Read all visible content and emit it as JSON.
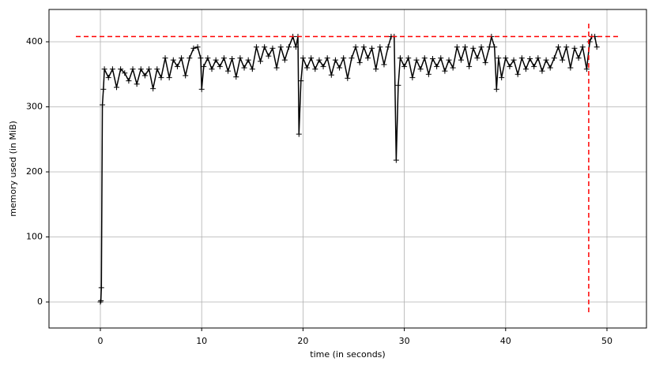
{
  "chart_data": {
    "type": "line",
    "xlabel": "time (in seconds)",
    "ylabel": "memory used (in MiB)",
    "color": "#000000",
    "grid": true,
    "xlim": [
      -5.07,
      53.9
    ],
    "ylim": [
      -40,
      449.7
    ],
    "xticks": [
      0,
      10,
      20,
      30,
      40,
      50
    ],
    "yticks": [
      0,
      100,
      200,
      300,
      400
    ],
    "peak": {
      "time": 48.2,
      "memory": 408,
      "color": "#ff0000"
    },
    "x": [
      0,
      0.05,
      0.1,
      0.2,
      0.3,
      0.4,
      0.8,
      1.2,
      1.6,
      2.0,
      2.4,
      2.8,
      3.2,
      3.6,
      4.0,
      4.4,
      4.8,
      5.2,
      5.6,
      6.0,
      6.4,
      6.8,
      7.2,
      7.6,
      8.0,
      8.4,
      8.8,
      9.2,
      9.6,
      9.9,
      10.0,
      10.2,
      10.6,
      11.0,
      11.4,
      11.8,
      12.2,
      12.6,
      13.0,
      13.4,
      13.8,
      14.2,
      14.6,
      15.0,
      15.4,
      15.8,
      16.2,
      16.6,
      17.0,
      17.4,
      17.8,
      18.2,
      18.6,
      19.0,
      19.3,
      19.5,
      19.6,
      19.8,
      20.0,
      20.4,
      20.8,
      21.2,
      21.6,
      22.0,
      22.4,
      22.8,
      23.2,
      23.6,
      24.0,
      24.4,
      24.8,
      25.2,
      25.6,
      26.0,
      26.4,
      26.8,
      27.2,
      27.6,
      28.0,
      28.4,
      28.7,
      29.0,
      29.2,
      29.4,
      29.6,
      30.0,
      30.4,
      30.8,
      31.2,
      31.6,
      32.0,
      32.4,
      32.8,
      33.2,
      33.6,
      34.0,
      34.4,
      34.8,
      35.2,
      35.6,
      36.0,
      36.4,
      36.8,
      37.2,
      37.6,
      38.0,
      38.4,
      38.6,
      38.9,
      39.1,
      39.3,
      39.6,
      40.0,
      40.4,
      40.8,
      41.2,
      41.6,
      42.0,
      42.4,
      42.8,
      43.2,
      43.6,
      44.0,
      44.4,
      44.8,
      45.2,
      45.6,
      46.0,
      46.4,
      46.8,
      47.2,
      47.6,
      48.0,
      48.3,
      48.5,
      48.8,
      49.0
    ],
    "values": [
      0,
      2,
      22,
      303,
      327,
      358,
      345,
      358,
      330,
      358,
      352,
      340,
      358,
      335,
      358,
      348,
      358,
      328,
      358,
      345,
      375,
      345,
      372,
      362,
      375,
      348,
      375,
      390,
      392,
      375,
      327,
      362,
      375,
      358,
      372,
      362,
      375,
      355,
      374,
      346,
      375,
      360,
      372,
      358,
      392,
      370,
      392,
      378,
      390,
      360,
      392,
      372,
      392,
      408,
      392,
      408,
      258,
      340,
      375,
      360,
      375,
      358,
      372,
      362,
      375,
      349,
      372,
      360,
      375,
      344,
      375,
      392,
      368,
      392,
      375,
      390,
      358,
      392,
      365,
      392,
      408,
      408,
      218,
      333,
      375,
      362,
      375,
      345,
      372,
      358,
      375,
      350,
      374,
      362,
      375,
      355,
      372,
      360,
      392,
      372,
      392,
      362,
      390,
      375,
      392,
      368,
      392,
      408,
      392,
      327,
      375,
      345,
      375,
      362,
      372,
      350,
      375,
      358,
      374,
      362,
      375,
      355,
      372,
      360,
      375,
      392,
      372,
      392,
      360,
      390,
      375,
      392,
      358,
      400,
      408,
      408,
      392
    ]
  }
}
